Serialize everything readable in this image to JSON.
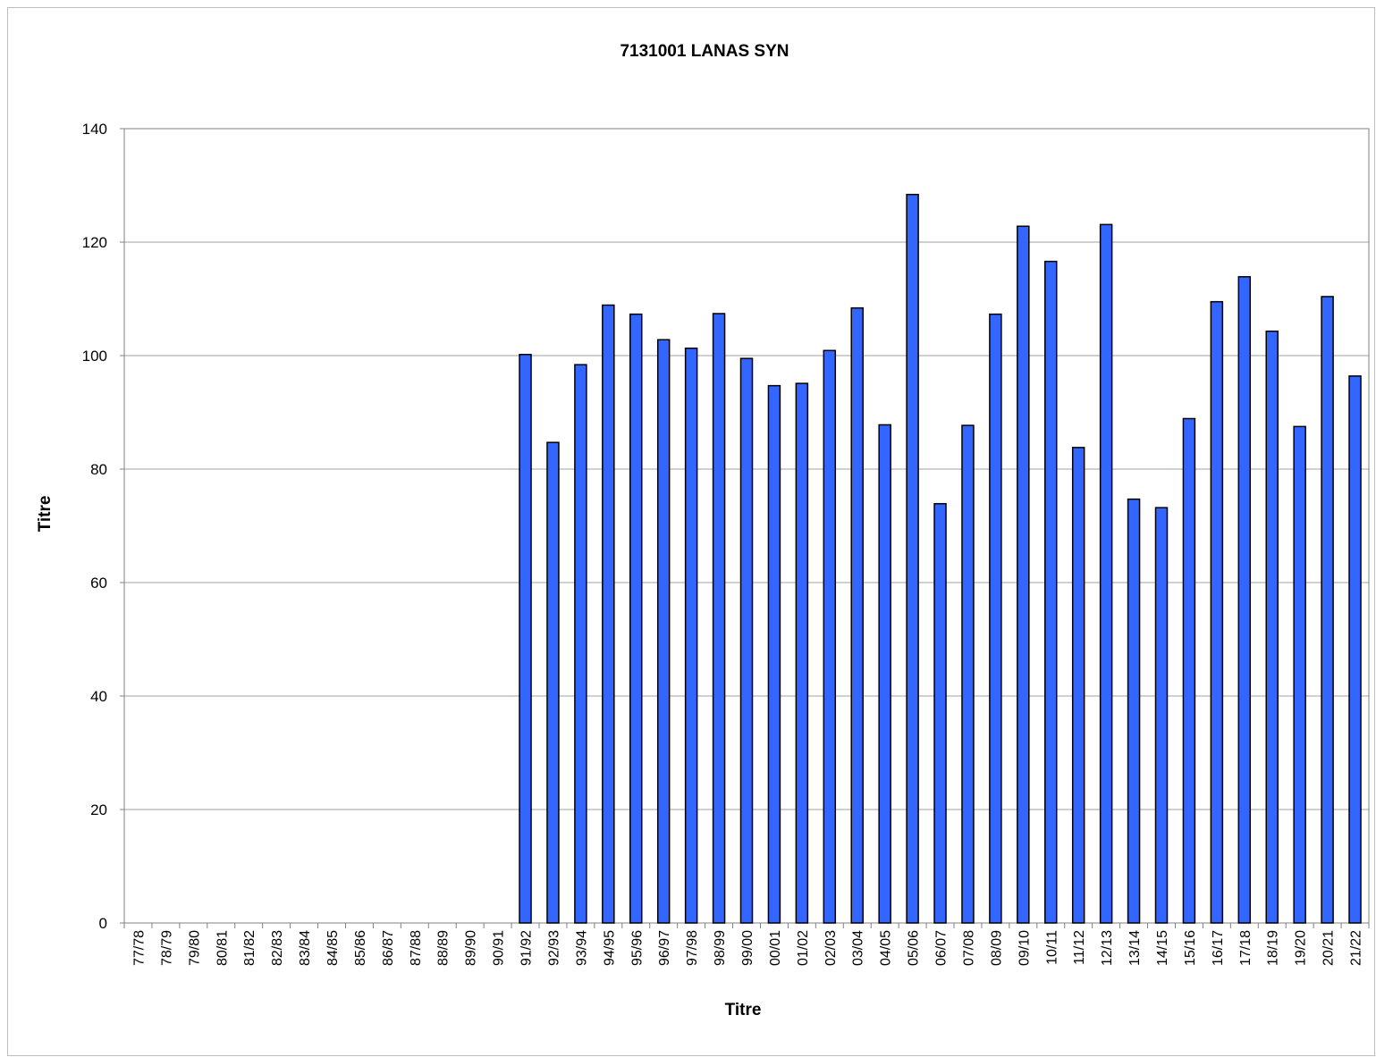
{
  "colors": {
    "bar_fill": "#3366ff",
    "bar_stroke": "#000000",
    "gridline": "#a0a0a0",
    "plot_border": "#808080",
    "frame_border": "#bdbdbd"
  },
  "chart_data": {
    "type": "bar",
    "title": "7131001 LANAS SYN",
    "xlabel": "Titre",
    "ylabel": "Titre",
    "ylim": [
      0,
      140
    ],
    "yticks": [
      0,
      20,
      40,
      60,
      80,
      100,
      120,
      140
    ],
    "grid": "horizontal",
    "legend": "none",
    "categories": [
      "77/78",
      "78/79",
      "79/80",
      "80/81",
      "81/82",
      "82/83",
      "83/84",
      "84/85",
      "85/86",
      "86/87",
      "87/88",
      "88/89",
      "89/90",
      "90/91",
      "91/92",
      "92/93",
      "93/94",
      "94/95",
      "95/96",
      "96/97",
      "97/98",
      "98/99",
      "99/00",
      "00/01",
      "01/02",
      "02/03",
      "03/04",
      "04/05",
      "05/06",
      "06/07",
      "07/08",
      "08/09",
      "09/10",
      "10/11",
      "11/12",
      "12/13",
      "13/14",
      "14/15",
      "15/16",
      "16/17",
      "17/18",
      "18/19",
      "19/20",
      "20/21",
      "21/22"
    ],
    "values": [
      null,
      null,
      null,
      null,
      null,
      null,
      null,
      null,
      null,
      null,
      null,
      null,
      null,
      null,
      100.2,
      84.7,
      98.4,
      108.9,
      107.3,
      102.8,
      101.3,
      107.4,
      99.5,
      94.7,
      95.1,
      100.9,
      108.4,
      87.8,
      128.4,
      73.9,
      87.7,
      107.3,
      122.8,
      116.6,
      83.8,
      123.1,
      74.7,
      73.2,
      88.9,
      109.5,
      113.9,
      104.3,
      87.5,
      110.4,
      96.4
    ]
  }
}
